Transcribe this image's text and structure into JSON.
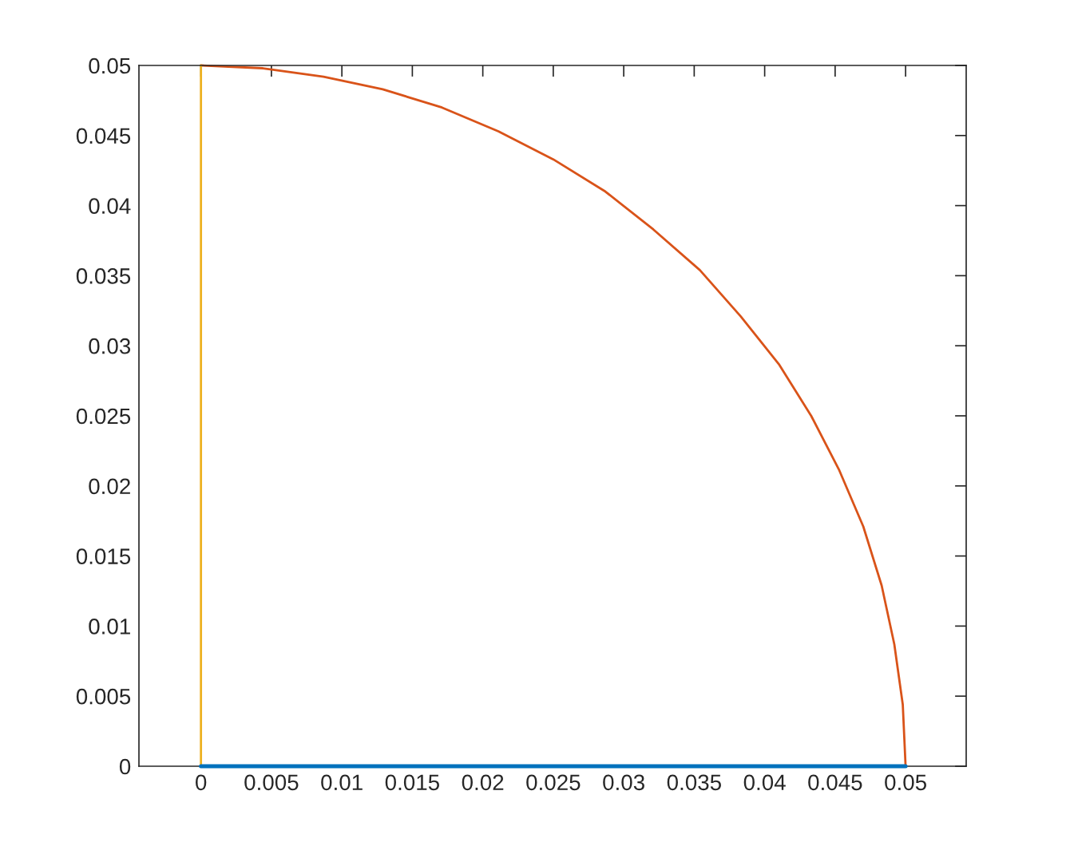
{
  "chart_data": {
    "type": "line",
    "series": [
      {
        "color": "#0072bd",
        "x": [
          0,
          0.05
        ],
        "values": [
          0,
          0
        ]
      },
      {
        "color": "#d95319",
        "x": [
          0,
          0.0044,
          0.0087,
          0.0129,
          0.0171,
          0.0211,
          0.025,
          0.0287,
          0.0321,
          0.0354,
          0.0383,
          0.041,
          0.0433,
          0.0453,
          0.047,
          0.0483,
          0.0492,
          0.0498,
          0.05
        ],
        "values": [
          0.05,
          0.0498,
          0.0492,
          0.0483,
          0.047,
          0.0453,
          0.0433,
          0.041,
          0.0383,
          0.0354,
          0.0321,
          0.0287,
          0.025,
          0.0211,
          0.0171,
          0.0129,
          0.0087,
          0.0044,
          0
        ]
      },
      {
        "color": "#edb120",
        "x": [
          0,
          0
        ],
        "values": [
          0,
          0.05
        ]
      }
    ],
    "xlim": [
      -0.0044,
      0.0543
    ],
    "ylim": [
      0,
      0.05
    ],
    "xticks": [
      0,
      0.005,
      0.01,
      0.015,
      0.02,
      0.025,
      0.03,
      0.035,
      0.04,
      0.045,
      0.05
    ],
    "yticks": [
      0,
      0.005,
      0.01,
      0.015,
      0.02,
      0.025,
      0.03,
      0.035,
      0.04,
      0.045,
      0.05
    ],
    "grid": false,
    "legend": false
  }
}
